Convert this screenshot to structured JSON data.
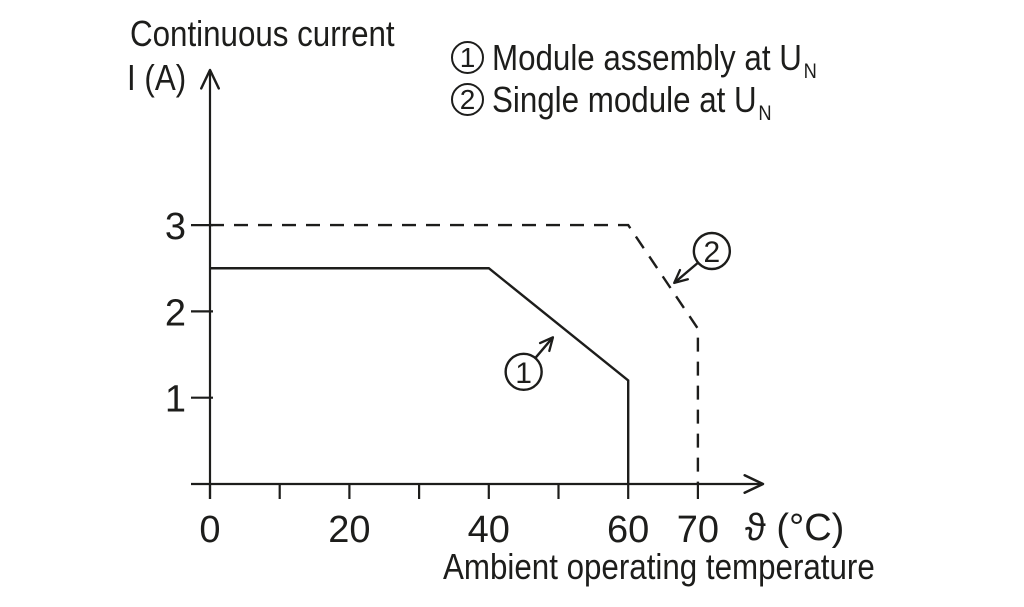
{
  "colors": {
    "ink": "#1d1d1b",
    "background": "#ffffff"
  },
  "legend": {
    "items": [
      {
        "marker": "1",
        "label": "Module assembly at U",
        "sub": "N"
      },
      {
        "marker": "2",
        "label": "Single module at U",
        "sub": "N"
      }
    ]
  },
  "chart_data": {
    "type": "line",
    "title": "Continuous current",
    "ylabel": "I (A)",
    "xlabel": "Ambient operating temperature",
    "x_unit_label": "ϑ (°C)",
    "xlim": [
      0,
      79
    ],
    "ylim": [
      0,
      4.8
    ],
    "x_ticks": [
      0,
      10,
      20,
      30,
      40,
      50,
      60,
      70
    ],
    "x_tick_labels": [
      "0",
      "",
      "20",
      "",
      "40",
      "",
      "60",
      "70"
    ],
    "y_ticks": [
      1,
      2,
      3
    ],
    "grid": false,
    "legend_position": "top-right",
    "series": [
      {
        "name": "Module assembly at U_N",
        "marker": "1",
        "line_style": "solid",
        "points": [
          [
            0,
            2.5
          ],
          [
            40,
            2.5
          ],
          [
            60,
            1.2
          ],
          [
            60,
            0
          ]
        ]
      },
      {
        "name": "Single module at U_N",
        "marker": "2",
        "line_style": "dashed",
        "points": [
          [
            0,
            3
          ],
          [
            60,
            3
          ],
          [
            70,
            1.8
          ],
          [
            70,
            0
          ]
        ]
      }
    ],
    "annotations": [
      {
        "label": "1",
        "target_series": "Module assembly at U_N",
        "circle_at": [
          45,
          1.3
        ],
        "arrow_tip": [
          49.2,
          1.7
        ]
      },
      {
        "label": "2",
        "target_series": "Single module at U_N",
        "circle_at": [
          72,
          2.7
        ],
        "arrow_tip": [
          66.6,
          2.33
        ]
      }
    ]
  }
}
